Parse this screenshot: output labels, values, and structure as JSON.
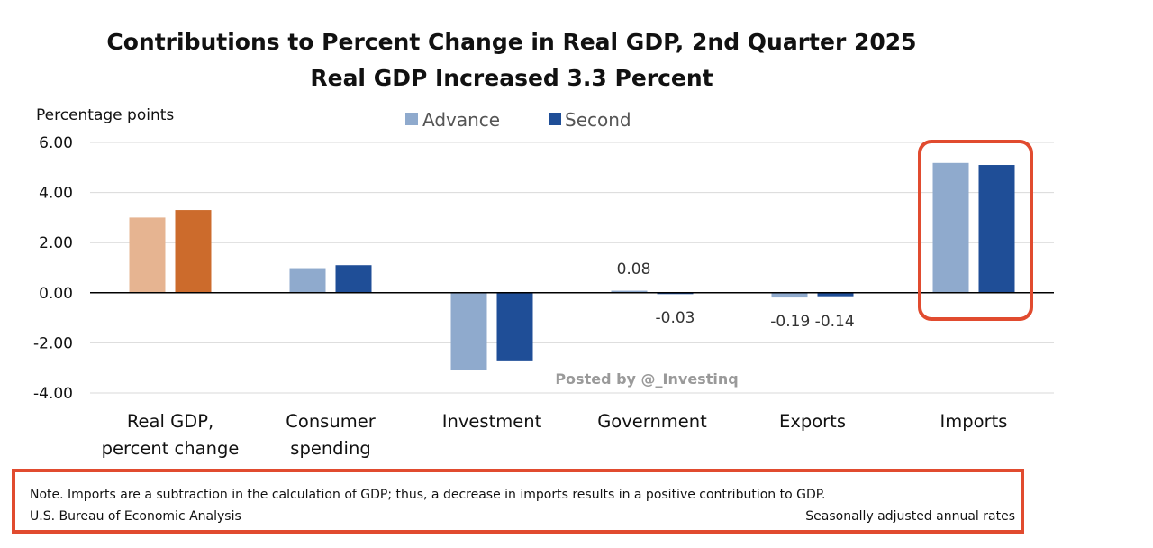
{
  "chart_data": {
    "type": "bar",
    "title": "Contributions to Percent Change in Real GDP, 2nd Quarter 2025",
    "subtitle": "Real GDP Increased 3.3 Percent",
    "ylabel": "Percentage points",
    "xlabel": "",
    "ylim": [
      -4.0,
      6.0
    ],
    "yticks": [
      "6.00",
      "4.00",
      "2.00",
      "0.00",
      "-2.00",
      "-4.00"
    ],
    "categories": [
      [
        "Real GDP,",
        "percent change"
      ],
      [
        "Consumer",
        "spending"
      ],
      [
        "Investment"
      ],
      [
        "Government"
      ],
      [
        "Exports"
      ],
      [
        "Imports"
      ]
    ],
    "series": [
      {
        "name": "Advance",
        "color": "#8faacd",
        "values": [
          3.0,
          0.98,
          -3.1,
          0.08,
          -0.19,
          5.18
        ],
        "labels": [
          "",
          "",
          "",
          "0.08",
          "",
          ""
        ]
      },
      {
        "name": "Second",
        "color": "#1f4e97",
        "values": [
          3.3,
          1.1,
          -2.7,
          -0.03,
          -0.14,
          5.1
        ],
        "labels": [
          "",
          "",
          "",
          "-0.03",
          "",
          ""
        ]
      }
    ],
    "special_colors": {
      "real_gdp_advance": "#e6b491",
      "real_gdp_second": "#cc6b2c"
    },
    "bottom_labels": {
      "exports": "-0.19 -0.14"
    },
    "highlight_color": "#e14b2f",
    "grid": true,
    "legend_position": "top-center"
  },
  "watermark": "Posted by @_Investinq",
  "note": {
    "line1": "Note. Imports are a subtraction in the calculation of GDP; thus, a decrease in imports results in a positive contribution to GDP.",
    "source": "U.S. Bureau of Economic Analysis",
    "rates": "Seasonally adjusted annual rates"
  }
}
